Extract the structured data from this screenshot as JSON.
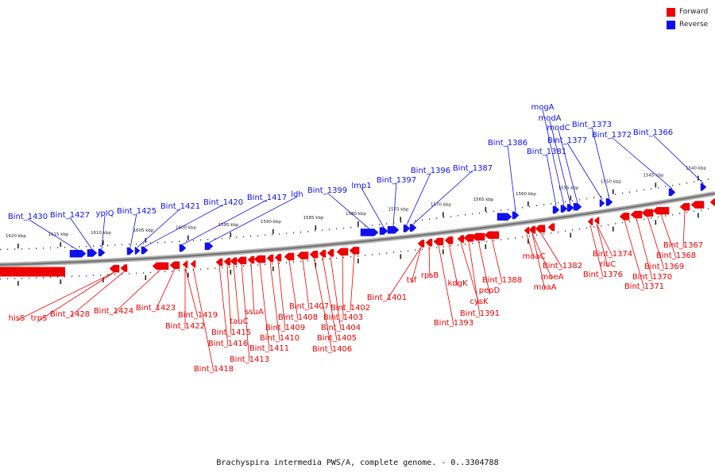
{
  "caption": "Brachyspira intermedia PWS/A, complete genome. - 0..3304788",
  "legend": [
    {
      "label": "Forward",
      "color": "#ee0000"
    },
    {
      "label": "Reverse",
      "color": "#1010ee"
    }
  ],
  "colors": {
    "forward": "#ee0000",
    "reverse": "#1010ee",
    "axis": "#888888"
  },
  "scale_labels": [
    "1620 kbp",
    "1615 kbp",
    "1610 kbp",
    "1605 kbp",
    "1600 kbp",
    "1595 kbp",
    "1590 kbp",
    "1585 kbp",
    "1580 kbp",
    "1575 kbp",
    "1570 kbp",
    "1565 kbp",
    "1560 kbp",
    "1555 kbp",
    "1550 kbp",
    "1545 kbp",
    "1540 kbp"
  ],
  "reverse_genes": [
    "Bint_1430",
    "Bint_1427",
    "yplQ",
    "Bint_1425",
    "Bint_1421",
    "Bint_1420",
    "Bint_1417",
    "ldh",
    "Bint_1399",
    "lmp1",
    "Bint_1397",
    "Bint_1396",
    "Bint_1387",
    "Bint_1386",
    "Bint_1381",
    "mogA",
    "modA",
    "modC",
    "Bint_1377",
    "Bint_1373",
    "Bint_1372",
    "Bint_1366"
  ],
  "forward_genes": [
    "hisS",
    "trpS",
    "Bint_1428",
    "Bint_1424",
    "Bint_1423",
    "Bint_1422",
    "Bint_1419",
    "Bint_1418",
    "Bint_1416",
    "Bint_1415",
    "tauC",
    "Bint_1413",
    "ssuA",
    "Bint_1411",
    "Bint_1410",
    "Bint_1409",
    "Bint_1408",
    "Bint_1407",
    "Bint_1406",
    "Bint_1405",
    "Bint_1404",
    "Bint_1403",
    "Bint_1402",
    "Bint_1401",
    "tsf",
    "rpsB",
    "Bint_1393",
    "kdgK",
    "cysK",
    "Bint_1391",
    "pepD",
    "Bint_1388",
    "moaC",
    "Bint_1382",
    "moeA",
    "moaA",
    "Bint_1376",
    "rluC",
    "Bint_1374",
    "Bint_1371",
    "Bint_1370",
    "Bint_1369",
    "Bint_1368",
    "Bint_1367"
  ]
}
